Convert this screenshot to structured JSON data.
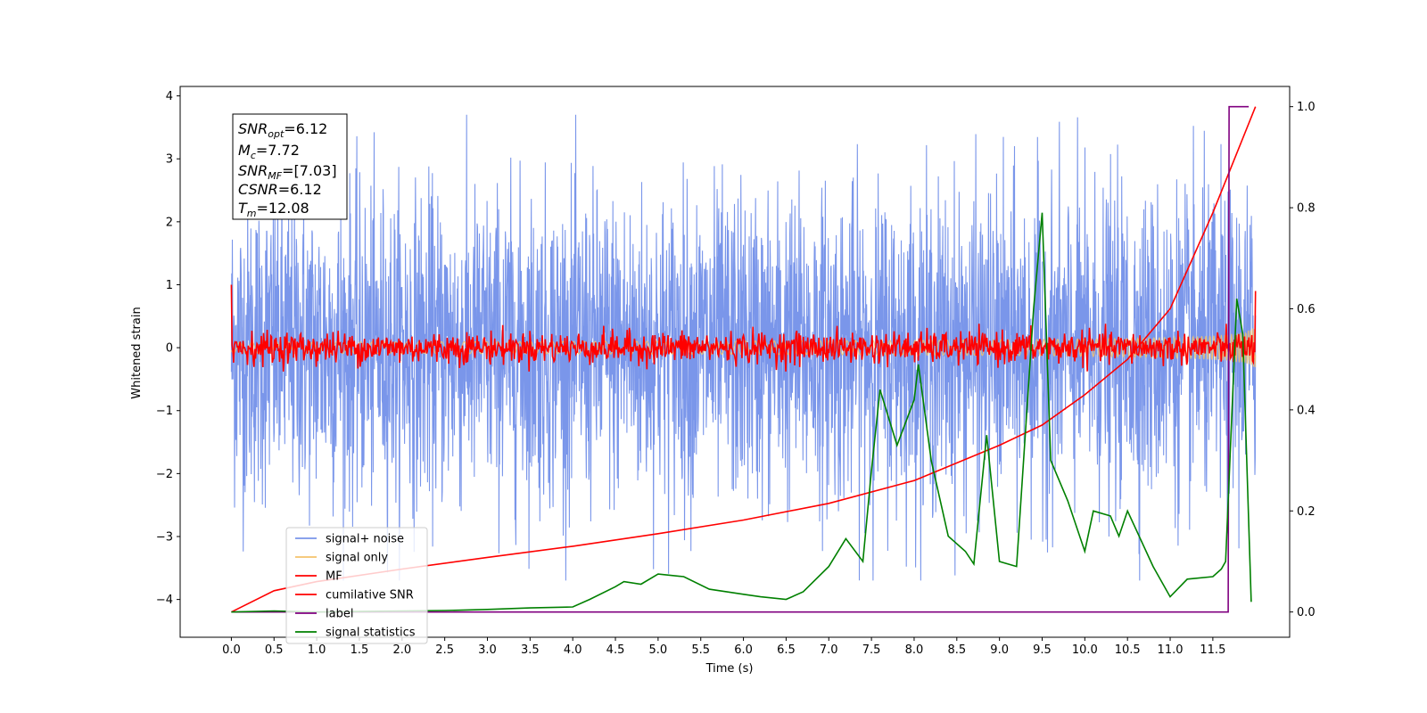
{
  "chart_data": {
    "type": "line",
    "title": "",
    "xlabel": "Time (s)",
    "ylabel": "Whitened strain",
    "ylabel_right": "",
    "xlim": [
      -0.6,
      12.4
    ],
    "ylim": [
      -4.6,
      4.15
    ],
    "ylim_right": [
      -0.05,
      1.04
    ],
    "x_ticks": [
      "0.0",
      "0.5",
      "1.0",
      "1.5",
      "2.0",
      "2.5",
      "3.0",
      "3.5",
      "4.0",
      "4.5",
      "5.0",
      "5.5",
      "6.0",
      "6.5",
      "7.0",
      "7.5",
      "8.0",
      "8.5",
      "9.0",
      "9.5",
      "10.0",
      "10.5",
      "11.0",
      "11.5"
    ],
    "y_ticks": [
      "4",
      "3",
      "2",
      "1",
      "0",
      "−1",
      "−2",
      "−3",
      "−4"
    ],
    "y_ticks_right": [
      "1.0",
      "0.8",
      "0.6",
      "0.4",
      "0.2",
      "0.0"
    ],
    "grid": false,
    "legend_position": "lower-left",
    "annotation": {
      "snr_opt": {
        "main": "SNR",
        "sub": "opt",
        "value": "=6.12"
      },
      "mc": {
        "main": "M",
        "sub": "c",
        "value": "=7.72"
      },
      "snr_mf": {
        "main": "SNR",
        "sub": "MF",
        "value": "=[7.03]"
      },
      "csnr": {
        "main": "CSNR",
        "sub": "",
        "value": "=6.12"
      },
      "tm": {
        "main": "T",
        "sub": "m",
        "value": "=12.08"
      }
    },
    "series": [
      {
        "name": "signal+ noise",
        "axis": "left",
        "color": "#4169e1",
        "style": "noise",
        "t_start": 0.0,
        "t_end": 12.0,
        "amplitude": 3.7,
        "mean": 0.0
      },
      {
        "name": "signal only",
        "axis": "left",
        "color": "#f5c36b",
        "style": "chirp",
        "t_start": 0.0,
        "t_end": 12.0,
        "amplitude_end": 0.35
      },
      {
        "name": "MF",
        "axis": "left",
        "color": "#ff0000",
        "style": "noise",
        "t_start": 0.0,
        "t_end": 12.0,
        "amplitude": 0.38,
        "mean": 0.0,
        "start_value": 1.0,
        "end_value": 0.9
      },
      {
        "name": "cumilative SNR",
        "axis": "right",
        "color": "#ff0000",
        "style": "curve",
        "x": [
          0.0,
          0.5,
          1.0,
          2.0,
          3.0,
          4.0,
          5.0,
          6.0,
          7.0,
          8.0,
          9.0,
          9.5,
          10.0,
          10.5,
          11.0,
          11.5,
          12.0
        ],
        "y": [
          0.0,
          0.042,
          0.06,
          0.085,
          0.108,
          0.13,
          0.155,
          0.182,
          0.215,
          0.26,
          0.33,
          0.37,
          0.43,
          0.5,
          0.6,
          0.79,
          1.0
        ]
      },
      {
        "name": "label",
        "axis": "right",
        "color": "#800080",
        "style": "step",
        "x": [
          0.0,
          11.68,
          11.69,
          11.92
        ],
        "y": [
          0.0,
          0.0,
          1.0,
          1.0
        ]
      },
      {
        "name": "signal statistics",
        "axis": "right",
        "color": "#008000",
        "style": "curve",
        "x": [
          0.0,
          0.5,
          1.0,
          1.5,
          2.0,
          2.5,
          3.0,
          3.5,
          4.0,
          4.2,
          4.5,
          4.6,
          4.8,
          5.0,
          5.3,
          5.6,
          6.0,
          6.2,
          6.5,
          6.7,
          7.0,
          7.2,
          7.4,
          7.5,
          7.6,
          7.8,
          8.0,
          8.05,
          8.2,
          8.4,
          8.6,
          8.7,
          8.85,
          9.0,
          9.2,
          9.4,
          9.5,
          9.6,
          9.8,
          10.0,
          10.1,
          10.3,
          10.4,
          10.5,
          10.8,
          11.0,
          11.2,
          11.5,
          11.6,
          11.65,
          11.78,
          11.85,
          11.95
        ],
        "y": [
          0.0,
          0.002,
          0.0,
          0.001,
          0.002,
          0.003,
          0.005,
          0.008,
          0.01,
          0.025,
          0.05,
          0.06,
          0.055,
          0.075,
          0.07,
          0.045,
          0.035,
          0.03,
          0.025,
          0.04,
          0.09,
          0.145,
          0.1,
          0.28,
          0.44,
          0.33,
          0.42,
          0.49,
          0.3,
          0.15,
          0.12,
          0.095,
          0.35,
          0.1,
          0.09,
          0.6,
          0.79,
          0.3,
          0.22,
          0.12,
          0.2,
          0.19,
          0.15,
          0.2,
          0.09,
          0.03,
          0.065,
          0.07,
          0.085,
          0.1,
          0.62,
          0.55,
          0.02
        ]
      }
    ]
  }
}
